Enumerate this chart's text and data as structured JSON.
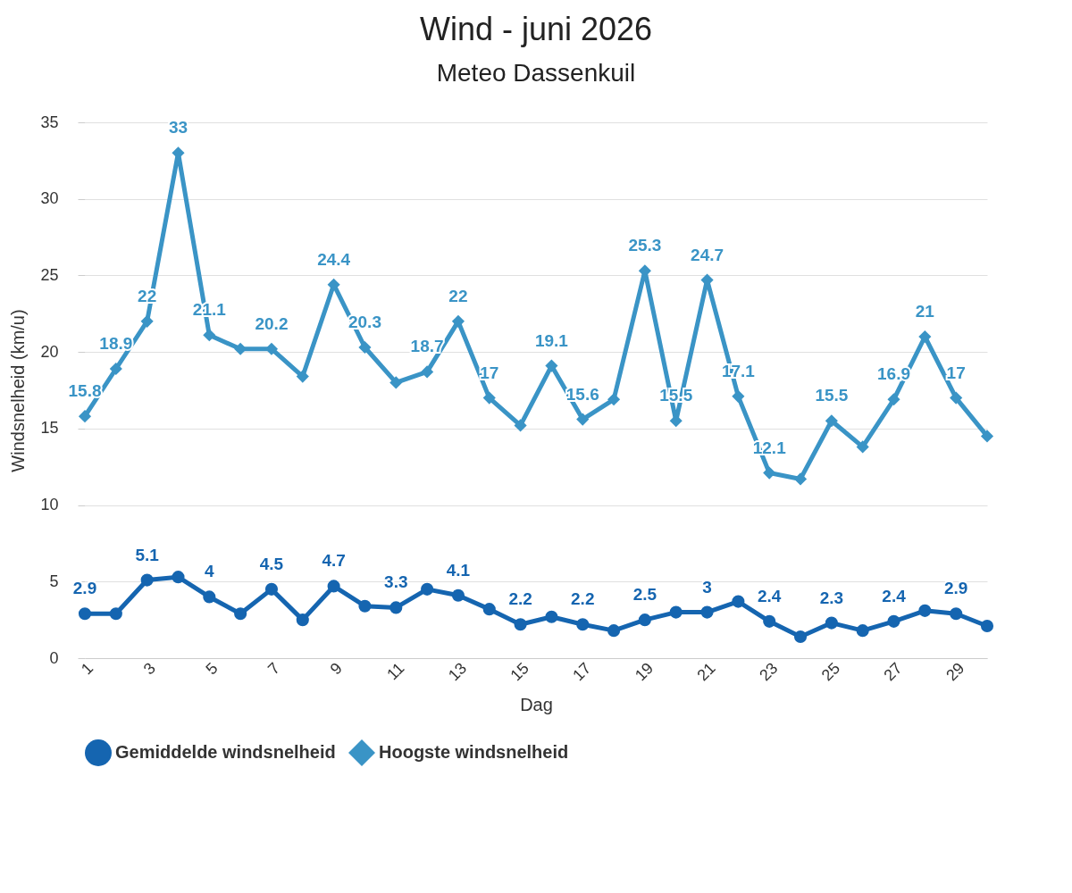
{
  "chart_data": {
    "type": "line",
    "title": "Wind - juni 2026",
    "subtitle": "Meteo Dassenkuil",
    "xlabel": "Dag",
    "ylabel": "Windsnelheid (km/u)",
    "x": [
      1,
      2,
      3,
      4,
      5,
      6,
      7,
      8,
      9,
      10,
      11,
      12,
      13,
      14,
      15,
      16,
      17,
      18,
      19,
      20,
      21,
      22,
      23,
      24,
      25,
      26,
      27,
      28,
      29,
      30
    ],
    "xlim": [
      1,
      30
    ],
    "xticks": [
      1,
      3,
      5,
      7,
      9,
      11,
      13,
      15,
      17,
      19,
      21,
      23,
      25,
      27,
      29
    ],
    "ylim": [
      0,
      35
    ],
    "yticks": [
      0,
      5,
      10,
      15,
      20,
      25,
      30,
      35
    ],
    "grid": "y",
    "legend": "bottom",
    "line_style": "solid",
    "series": [
      {
        "name": "Gemiddelde windsnelheid",
        "color": "#1565b0",
        "marker": "circle",
        "values": [
          2.9,
          2.9,
          5.1,
          5.3,
          4,
          2.9,
          4.5,
          2.5,
          4.7,
          3.4,
          3.3,
          4.5,
          4.1,
          3.2,
          2.2,
          2.7,
          2.2,
          1.8,
          2.5,
          3.0,
          3,
          3.7,
          2.4,
          1.4,
          2.3,
          1.8,
          2.4,
          3.1,
          2.9,
          2.1
        ],
        "value_labels": [
          "2.9",
          null,
          "5.1",
          null,
          "4",
          null,
          "4.5",
          null,
          "4.7",
          null,
          "3.3",
          null,
          "4.1",
          null,
          "2.2",
          null,
          "2.2",
          null,
          "2.5",
          null,
          "3",
          null,
          "2.4",
          null,
          "2.3",
          null,
          "2.4",
          null,
          "2.9",
          null
        ]
      },
      {
        "name": "Hoogste windsnelheid",
        "color": "#3a94c6",
        "marker": "diamond",
        "values": [
          15.8,
          18.9,
          22,
          33,
          21.1,
          20.2,
          20.2,
          18.4,
          24.4,
          20.3,
          18.0,
          18.7,
          22,
          17,
          15.2,
          19.1,
          15.6,
          16.9,
          25.3,
          15.5,
          24.7,
          17.1,
          12.1,
          11.7,
          15.5,
          13.8,
          16.9,
          21,
          17,
          14.5
        ],
        "value_labels": [
          "15.8",
          "18.9",
          "22",
          "33",
          "21.1",
          null,
          "20.2",
          null,
          "24.4",
          "20.3",
          null,
          "18.7",
          "22",
          "17",
          null,
          "19.1",
          "15.6",
          null,
          "25.3",
          "15.5",
          "24.7",
          "17.1",
          "12.1",
          null,
          "15.5",
          null,
          "16.9",
          "21",
          "17",
          null
        ]
      }
    ]
  }
}
